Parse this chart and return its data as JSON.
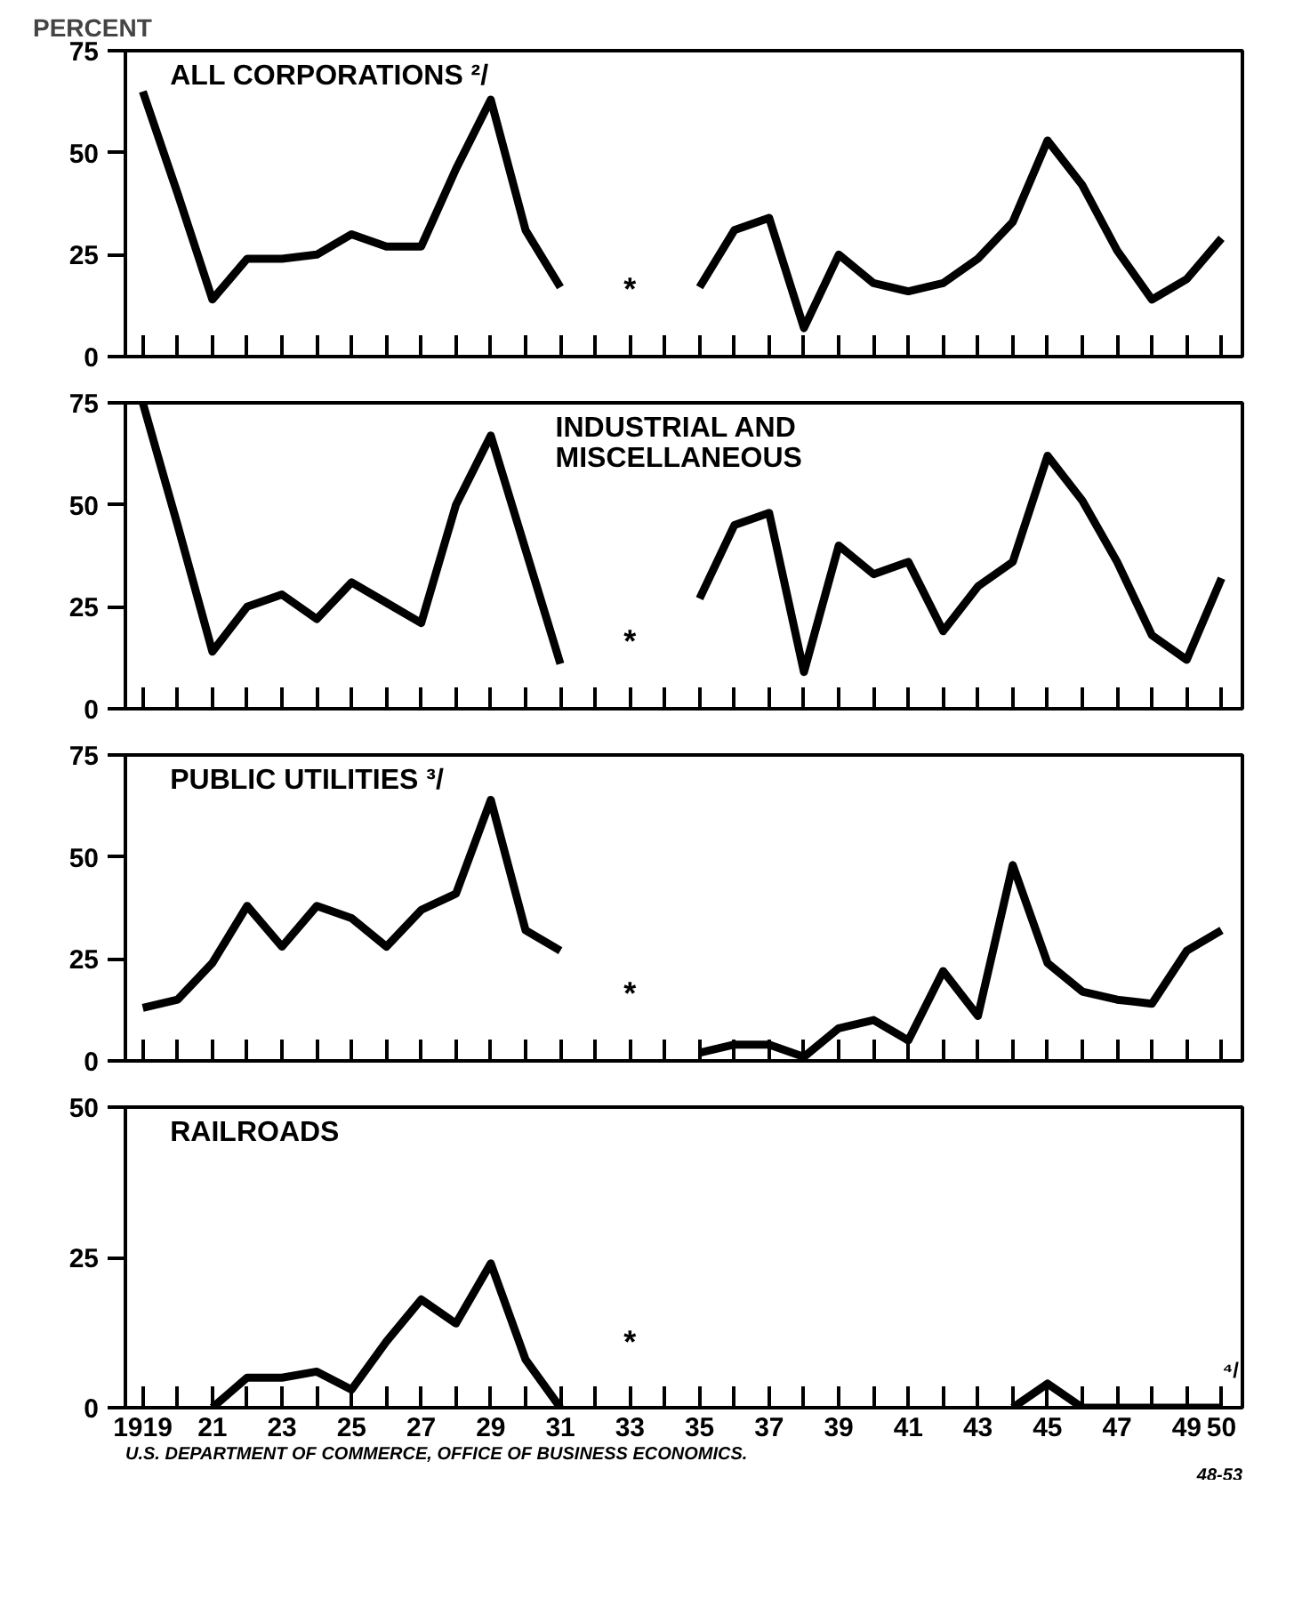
{
  "chart_data": [
    {
      "type": "line",
      "title": "ALL CORPORATIONS ²/",
      "ylabel": "PERCENT",
      "x": [
        1919,
        1920,
        1921,
        1922,
        1923,
        1924,
        1925,
        1926,
        1927,
        1928,
        1929,
        1930,
        1931,
        1932,
        1933,
        1934,
        1935,
        1936,
        1937,
        1938,
        1939,
        1940,
        1941,
        1942,
        1943,
        1944,
        1945,
        1946,
        1947,
        1948,
        1949,
        1950
      ],
      "series": [
        {
          "color": "#000000",
          "values": [
            65,
            40,
            14,
            24,
            24,
            25,
            30,
            27,
            27,
            46,
            63,
            31,
            17,
            null,
            null,
            null,
            17,
            31,
            34,
            7,
            25,
            18,
            16,
            18,
            24,
            33,
            53,
            42,
            26,
            14,
            19,
            29
          ]
        }
      ],
      "xlim": [
        1918.5,
        1950.6
      ],
      "ylim": [
        0,
        75
      ],
      "yticks": [
        0,
        25,
        50,
        75
      ],
      "xticks": [
        1919,
        1920,
        1921,
        1922,
        1923,
        1924,
        1925,
        1926,
        1927,
        1928,
        1929,
        1930,
        1931,
        1932,
        1933,
        1934,
        1935,
        1936,
        1937,
        1938,
        1939,
        1940,
        1941,
        1942,
        1943,
        1944,
        1945,
        1946,
        1947,
        1948,
        1949,
        1950
      ],
      "tick_labels": "y",
      "grid": false,
      "annotations": [
        "*"
      ]
    },
    {
      "type": "line",
      "title": "INDUSTRIAL AND\nMISCELLANEOUS",
      "x": [
        1919,
        1920,
        1921,
        1922,
        1923,
        1924,
        1925,
        1926,
        1927,
        1928,
        1929,
        1930,
        1931,
        1932,
        1933,
        1934,
        1935,
        1936,
        1937,
        1938,
        1939,
        1940,
        1941,
        1942,
        1943,
        1944,
        1945,
        1946,
        1947,
        1948,
        1949,
        1950
      ],
      "series": [
        {
          "color": "#000000",
          "values": [
            75,
            45,
            14,
            25,
            28,
            22,
            31,
            26,
            21,
            50,
            67,
            39,
            11,
            null,
            null,
            null,
            27,
            45,
            48,
            9,
            40,
            33,
            36,
            19,
            30,
            36,
            62,
            51,
            36,
            18,
            12,
            32
          ]
        }
      ],
      "xlim": [
        1918.5,
        1950.6
      ],
      "ylim": [
        0,
        75
      ],
      "yticks": [
        0,
        25,
        50,
        75
      ],
      "xticks": [
        1919,
        1920,
        1921,
        1922,
        1923,
        1924,
        1925,
        1926,
        1927,
        1928,
        1929,
        1930,
        1931,
        1932,
        1933,
        1934,
        1935,
        1936,
        1937,
        1938,
        1939,
        1940,
        1941,
        1942,
        1943,
        1944,
        1945,
        1946,
        1947,
        1948,
        1949,
        1950
      ],
      "tick_labels": "y",
      "grid": false,
      "annotations": [
        "*"
      ]
    },
    {
      "type": "line",
      "title": "PUBLIC UTILITIES ³/",
      "x": [
        1919,
        1920,
        1921,
        1922,
        1923,
        1924,
        1925,
        1926,
        1927,
        1928,
        1929,
        1930,
        1931,
        1932,
        1933,
        1934,
        1935,
        1936,
        1937,
        1938,
        1939,
        1940,
        1941,
        1942,
        1943,
        1944,
        1945,
        1946,
        1947,
        1948,
        1949,
        1950
      ],
      "series": [
        {
          "color": "#000000",
          "values": [
            13,
            15,
            24,
            38,
            28,
            38,
            35,
            28,
            37,
            41,
            64,
            32,
            27,
            null,
            null,
            null,
            2,
            4,
            4,
            1,
            8,
            10,
            5,
            22,
            11,
            48,
            24,
            17,
            15,
            14,
            27,
            32
          ]
        }
      ],
      "xlim": [
        1918.5,
        1950.6
      ],
      "ylim": [
        0,
        75
      ],
      "yticks": [
        0,
        25,
        50,
        75
      ],
      "xticks": [
        1919,
        1920,
        1921,
        1922,
        1923,
        1924,
        1925,
        1926,
        1927,
        1928,
        1929,
        1930,
        1931,
        1932,
        1933,
        1934,
        1935,
        1936,
        1937,
        1938,
        1939,
        1940,
        1941,
        1942,
        1943,
        1944,
        1945,
        1946,
        1947,
        1948,
        1949,
        1950
      ],
      "tick_labels": "y",
      "grid": false,
      "annotations": [
        "*"
      ]
    },
    {
      "type": "line",
      "title": "RAILROADS",
      "series": [
        {
          "color": "#000000",
          "x": [
            1921,
            1922,
            1923,
            1924,
            1925,
            1926,
            1927,
            1928,
            1929,
            1930,
            1931,
            1932,
            1933,
            1934,
            1935,
            1936,
            1937,
            1938,
            1939,
            1940,
            1941,
            1942,
            1943,
            1944,
            1945,
            1946,
            1947,
            1948,
            1949,
            1950
          ],
          "values": [
            0,
            5,
            5,
            6,
            3,
            11,
            18,
            14,
            24,
            8,
            0,
            null,
            null,
            null,
            null,
            null,
            null,
            null,
            null,
            null,
            null,
            null,
            null,
            0,
            4,
            0,
            0,
            0,
            0,
            0
          ]
        }
      ],
      "xlim": [
        1918.5,
        1950.6
      ],
      "ylim": [
        0,
        50
      ],
      "yticks": [
        0,
        25,
        50
      ],
      "xticks": [
        {
          "value": 1919,
          "label": "1919"
        },
        {
          "value": 1920,
          "label": null
        },
        {
          "value": 1921,
          "label": "21"
        },
        {
          "value": 1922,
          "label": null
        },
        {
          "value": 1923,
          "label": "23"
        },
        {
          "value": 1924,
          "label": null
        },
        {
          "value": 1925,
          "label": "25"
        },
        {
          "value": 1926,
          "label": null
        },
        {
          "value": 1927,
          "label": "27"
        },
        {
          "value": 1928,
          "label": null
        },
        {
          "value": 1929,
          "label": "29"
        },
        {
          "value": 1930,
          "label": null
        },
        {
          "value": 1931,
          "label": "31"
        },
        {
          "value": 1932,
          "label": null
        },
        {
          "value": 1933,
          "label": "33"
        },
        {
          "value": 1934,
          "label": null
        },
        {
          "value": 1935,
          "label": "35"
        },
        {
          "value": 1936,
          "label": null
        },
        {
          "value": 1937,
          "label": "37"
        },
        {
          "value": 1938,
          "label": null
        },
        {
          "value": 1939,
          "label": "39"
        },
        {
          "value": 1940,
          "label": null
        },
        {
          "value": 1941,
          "label": "41"
        },
        {
          "value": 1942,
          "label": null
        },
        {
          "value": 1943,
          "label": "43"
        },
        {
          "value": 1944,
          "label": null
        },
        {
          "value": 1945,
          "label": "45"
        },
        {
          "value": 1946,
          "label": null
        },
        {
          "value": 1947,
          "label": "47"
        },
        {
          "value": 1948,
          "label": null
        },
        {
          "value": 1949,
          "label": "49"
        },
        {
          "value": 1950,
          "label": "50"
        }
      ],
      "grid": false,
      "annotations": [
        "*",
        "⁴/",
        "U.S. DEPARTMENT OF COMMERCE, OFFICE OF BUSINESS ECONOMICS.",
        "48-53"
      ]
    }
  ]
}
